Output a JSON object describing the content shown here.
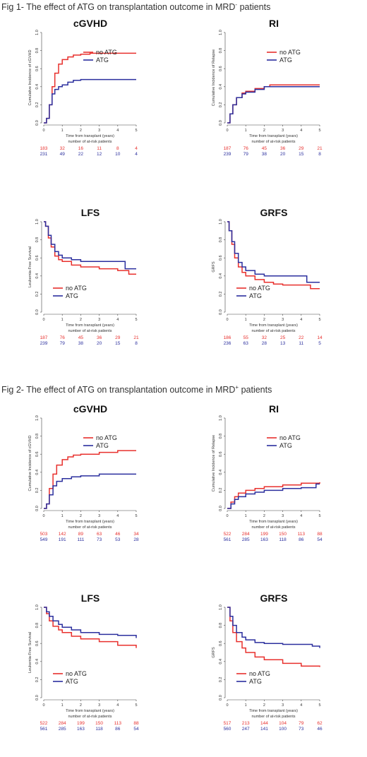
{
  "figures": [
    {
      "title_prefix": "Fig 1- The effect of ATG on transplantation outcome in MRD",
      "title_sup": "-",
      "title_suffix": " patients"
    },
    {
      "title_prefix": "Fig 2- The effect of ATG on transplantation outcome in MRD",
      "title_sup": "+",
      "title_suffix": " patients"
    }
  ],
  "colors": {
    "no_atg": "#e8302d",
    "atg": "#2b2f9e"
  },
  "chart_data": [
    {
      "type": "line",
      "figure": 1,
      "title": "cGVHD",
      "ylabel": "Cumulative Incidence of cGVHD",
      "xlabel": "Time from transplant (years)",
      "risk_title": "number of at-risk patients",
      "xlim": [
        0,
        5
      ],
      "ylim": [
        0,
        1
      ],
      "legend": "top-right",
      "xticks": [
        "0",
        "1",
        "2",
        "3",
        "4",
        "5"
      ],
      "yticks": [
        "0.0",
        "0.2",
        "0.4",
        "0.6",
        "0.8",
        "1.0"
      ],
      "series": [
        {
          "name": "no ATG",
          "color": "#e8302d",
          "x": [
            0,
            0.15,
            0.3,
            0.45,
            0.6,
            0.8,
            1.0,
            1.3,
            1.6,
            2.0,
            2.5,
            5.0
          ],
          "y": [
            0,
            0.05,
            0.2,
            0.4,
            0.55,
            0.65,
            0.7,
            0.73,
            0.75,
            0.76,
            0.77,
            0.77
          ],
          "risk": [
            "183",
            "32",
            "16",
            "11",
            "8",
            "4"
          ]
        },
        {
          "name": "ATG",
          "color": "#2b2f9e",
          "x": [
            0,
            0.15,
            0.3,
            0.45,
            0.6,
            0.8,
            1.0,
            1.3,
            1.6,
            2.0,
            5.0
          ],
          "y": [
            0,
            0.05,
            0.2,
            0.32,
            0.37,
            0.4,
            0.42,
            0.45,
            0.47,
            0.48,
            0.48
          ],
          "risk": [
            "231",
            "49",
            "22",
            "12",
            "10",
            "4"
          ]
        }
      ]
    },
    {
      "type": "line",
      "figure": 1,
      "title": "RI",
      "ylabel": "Cumulative Incidence of Relapse",
      "xlabel": "Time from transplant (years)",
      "risk_title": "number of at-risk patients",
      "xlim": [
        0,
        5
      ],
      "ylim": [
        0,
        1
      ],
      "legend": "top-right",
      "xticks": [
        "0",
        "1",
        "2",
        "3",
        "4",
        "5"
      ],
      "yticks": [
        "0.0",
        "0.2",
        "0.4",
        "0.6",
        "0.8",
        "1.0"
      ],
      "series": [
        {
          "name": "no ATG",
          "color": "#e8302d",
          "x": [
            0,
            0.15,
            0.3,
            0.5,
            0.8,
            1.0,
            1.5,
            2.0,
            2.3,
            5.0
          ],
          "y": [
            0,
            0.1,
            0.2,
            0.28,
            0.33,
            0.35,
            0.38,
            0.4,
            0.42,
            0.42
          ],
          "risk": [
            "187",
            "76",
            "45",
            "36",
            "29",
            "21"
          ]
        },
        {
          "name": "ATG",
          "color": "#2b2f9e",
          "x": [
            0,
            0.15,
            0.3,
            0.5,
            0.8,
            1.0,
            1.5,
            2.0,
            5.0
          ],
          "y": [
            0,
            0.1,
            0.2,
            0.28,
            0.32,
            0.34,
            0.37,
            0.4,
            0.4
          ],
          "risk": [
            "239",
            "79",
            "38",
            "20",
            "15",
            "8"
          ]
        }
      ]
    },
    {
      "type": "line",
      "figure": 1,
      "title": "LFS",
      "ylabel": "Leukemia-Free Survival",
      "xlabel": "Time from transplant (years)",
      "risk_title": "number of at-risk patients",
      "xlim": [
        0,
        5
      ],
      "ylim": [
        0,
        1
      ],
      "legend": "bottom-left",
      "xticks": [
        "0",
        "1",
        "2",
        "3",
        "4",
        "5"
      ],
      "yticks": [
        "0.0",
        "0.2",
        "0.4",
        "0.6",
        "0.8",
        "1.0"
      ],
      "series": [
        {
          "name": "no ATG",
          "color": "#e8302d",
          "x": [
            0,
            0.1,
            0.25,
            0.4,
            0.6,
            0.8,
            1.0,
            1.5,
            2.0,
            3.0,
            4.0,
            4.6,
            5.0
          ],
          "y": [
            1,
            0.95,
            0.82,
            0.72,
            0.62,
            0.58,
            0.56,
            0.52,
            0.5,
            0.48,
            0.46,
            0.42,
            0.42
          ],
          "risk": [
            "187",
            "76",
            "45",
            "36",
            "29",
            "21"
          ]
        },
        {
          "name": "ATG",
          "color": "#2b2f9e",
          "x": [
            0,
            0.1,
            0.25,
            0.4,
            0.6,
            0.8,
            1.0,
            1.5,
            2.0,
            3.0,
            4.0,
            4.4,
            5.0
          ],
          "y": [
            1,
            0.95,
            0.85,
            0.75,
            0.67,
            0.63,
            0.6,
            0.58,
            0.56,
            0.56,
            0.56,
            0.48,
            0.48
          ],
          "risk": [
            "239",
            "79",
            "38",
            "20",
            "15",
            "8"
          ]
        }
      ]
    },
    {
      "type": "line",
      "figure": 1,
      "title": "GRFS",
      "ylabel": "GRFS",
      "xlabel": "Time from transplant (years)",
      "risk_title": "number of at-risk patients",
      "xlim": [
        0,
        5
      ],
      "ylim": [
        0,
        1
      ],
      "legend": "bottom-left",
      "xticks": [
        "0",
        "1",
        "2",
        "3",
        "4",
        "5"
      ],
      "yticks": [
        "0.0",
        "0.2",
        "0.4",
        "0.6",
        "0.8",
        "1.0"
      ],
      "series": [
        {
          "name": "no ATG",
          "color": "#e8302d",
          "x": [
            0,
            0.1,
            0.25,
            0.4,
            0.6,
            0.8,
            1.0,
            1.5,
            2.0,
            2.5,
            3.0,
            4.0,
            4.5,
            5.0
          ],
          "y": [
            1,
            0.9,
            0.75,
            0.6,
            0.5,
            0.44,
            0.4,
            0.36,
            0.33,
            0.31,
            0.3,
            0.3,
            0.26,
            0.26
          ],
          "risk": [
            "186",
            "55",
            "32",
            "25",
            "22",
            "14"
          ]
        },
        {
          "name": "ATG",
          "color": "#2b2f9e",
          "x": [
            0,
            0.1,
            0.25,
            0.4,
            0.6,
            0.8,
            1.0,
            1.5,
            2.0,
            3.0,
            4.0,
            4.3,
            5.0
          ],
          "y": [
            1,
            0.9,
            0.78,
            0.65,
            0.55,
            0.5,
            0.46,
            0.42,
            0.4,
            0.4,
            0.4,
            0.33,
            0.33
          ],
          "risk": [
            "236",
            "63",
            "28",
            "13",
            "11",
            "5"
          ]
        }
      ]
    },
    {
      "type": "line",
      "figure": 2,
      "title": "cGVHD",
      "ylabel": "Cumulative Incidence of cGVHD",
      "xlabel": "Time from transplant (years)",
      "risk_title": "number of at-risk patients",
      "xlim": [
        0,
        5
      ],
      "ylim": [
        0,
        1
      ],
      "legend": "top-right",
      "xticks": [
        "0",
        "1",
        "2",
        "3",
        "4",
        "5"
      ],
      "yticks": [
        "0.0",
        "0.2",
        "0.4",
        "0.6",
        "0.8",
        "1.0"
      ],
      "series": [
        {
          "name": "no ATG",
          "color": "#e8302d",
          "x": [
            0,
            0.15,
            0.3,
            0.5,
            0.7,
            1.0,
            1.3,
            1.6,
            2.0,
            3.0,
            4.0,
            5.0
          ],
          "y": [
            0,
            0.05,
            0.22,
            0.38,
            0.48,
            0.54,
            0.57,
            0.59,
            0.6,
            0.62,
            0.64,
            0.64
          ],
          "risk": [
            "503",
            "142",
            "89",
            "63",
            "46",
            "34"
          ]
        },
        {
          "name": "ATG",
          "color": "#2b2f9e",
          "x": [
            0,
            0.15,
            0.3,
            0.5,
            0.7,
            1.0,
            1.5,
            2.0,
            3.0,
            5.0
          ],
          "y": [
            0,
            0.05,
            0.15,
            0.25,
            0.3,
            0.33,
            0.35,
            0.36,
            0.38,
            0.38
          ],
          "risk": [
            "549",
            "191",
            "111",
            "73",
            "53",
            "28"
          ]
        }
      ]
    },
    {
      "type": "line",
      "figure": 2,
      "title": "RI",
      "ylabel": "Cumulative Incidence of Relapse",
      "xlabel": "Time from transplant (years)",
      "risk_title": "number of at-risk patients",
      "xlim": [
        0,
        5
      ],
      "ylim": [
        0,
        1
      ],
      "legend": "top-right",
      "xticks": [
        "0",
        "1",
        "2",
        "3",
        "4",
        "5"
      ],
      "yticks": [
        "0.0",
        "0.2",
        "0.4",
        "0.6",
        "0.8",
        "1.0"
      ],
      "series": [
        {
          "name": "no ATG",
          "color": "#e8302d",
          "x": [
            0,
            0.2,
            0.4,
            0.6,
            1.0,
            1.5,
            2.0,
            3.0,
            4.0,
            5.0
          ],
          "y": [
            0,
            0.07,
            0.13,
            0.17,
            0.2,
            0.22,
            0.24,
            0.26,
            0.28,
            0.29
          ],
          "risk": [
            "522",
            "284",
            "199",
            "150",
            "113",
            "88"
          ]
        },
        {
          "name": "ATG",
          "color": "#2b2f9e",
          "x": [
            0,
            0.2,
            0.4,
            0.6,
            1.0,
            1.5,
            2.0,
            3.0,
            4.0,
            4.8,
            5.0
          ],
          "y": [
            0,
            0.05,
            0.1,
            0.13,
            0.16,
            0.18,
            0.2,
            0.22,
            0.23,
            0.27,
            0.27
          ],
          "risk": [
            "561",
            "285",
            "163",
            "118",
            "86",
            "54"
          ]
        }
      ]
    },
    {
      "type": "line",
      "figure": 2,
      "title": "LFS",
      "ylabel": "Leukemia-Free Survival",
      "xlabel": "Time from transplant (years)",
      "risk_title": "number of at-risk patients",
      "xlim": [
        0,
        5
      ],
      "ylim": [
        0,
        1
      ],
      "legend": "bottom-left",
      "xticks": [
        "0",
        "1",
        "2",
        "3",
        "4",
        "5"
      ],
      "yticks": [
        "0.0",
        "0.2",
        "0.4",
        "0.6",
        "0.8",
        "1.0"
      ],
      "series": [
        {
          "name": "no ATG",
          "color": "#e8302d",
          "x": [
            0,
            0.15,
            0.3,
            0.5,
            0.8,
            1.0,
            1.5,
            2.0,
            3.0,
            4.0,
            5.0
          ],
          "y": [
            1,
            0.93,
            0.85,
            0.79,
            0.75,
            0.72,
            0.68,
            0.65,
            0.62,
            0.58,
            0.55
          ],
          "risk": [
            "522",
            "284",
            "199",
            "150",
            "113",
            "88"
          ]
        },
        {
          "name": "ATG",
          "color": "#2b2f9e",
          "x": [
            0,
            0.15,
            0.3,
            0.5,
            0.8,
            1.0,
            1.5,
            2.0,
            3.0,
            4.0,
            5.0
          ],
          "y": [
            1,
            0.95,
            0.9,
            0.85,
            0.81,
            0.78,
            0.75,
            0.72,
            0.7,
            0.69,
            0.66
          ],
          "risk": [
            "561",
            "285",
            "163",
            "118",
            "86",
            "54"
          ]
        }
      ]
    },
    {
      "type": "line",
      "figure": 2,
      "title": "GRFS",
      "ylabel": "GRFS",
      "xlabel": "Time from transplant (years)",
      "risk_title": "number of at-risk patients",
      "xlim": [
        0,
        5
      ],
      "ylim": [
        0,
        1
      ],
      "legend": "bottom-left",
      "xticks": [
        "0",
        "1",
        "2",
        "3",
        "4",
        "5"
      ],
      "yticks": [
        "0.0",
        "0.2",
        "0.4",
        "0.6",
        "0.8",
        "1.0"
      ],
      "series": [
        {
          "name": "no ATG",
          "color": "#e8302d",
          "x": [
            0,
            0.15,
            0.3,
            0.5,
            0.8,
            1.0,
            1.5,
            2.0,
            3.0,
            4.0,
            5.0
          ],
          "y": [
            1,
            0.85,
            0.72,
            0.62,
            0.55,
            0.5,
            0.45,
            0.42,
            0.38,
            0.35,
            0.34
          ],
          "risk": [
            "517",
            "213",
            "144",
            "104",
            "79",
            "62"
          ]
        },
        {
          "name": "ATG",
          "color": "#2b2f9e",
          "x": [
            0,
            0.15,
            0.3,
            0.5,
            0.8,
            1.0,
            1.5,
            2.0,
            3.0,
            4.0,
            4.6,
            5.0
          ],
          "y": [
            1,
            0.9,
            0.8,
            0.72,
            0.67,
            0.64,
            0.61,
            0.6,
            0.59,
            0.59,
            0.57,
            0.55
          ],
          "risk": [
            "560",
            "247",
            "141",
            "100",
            "73",
            "46"
          ]
        }
      ]
    }
  ]
}
